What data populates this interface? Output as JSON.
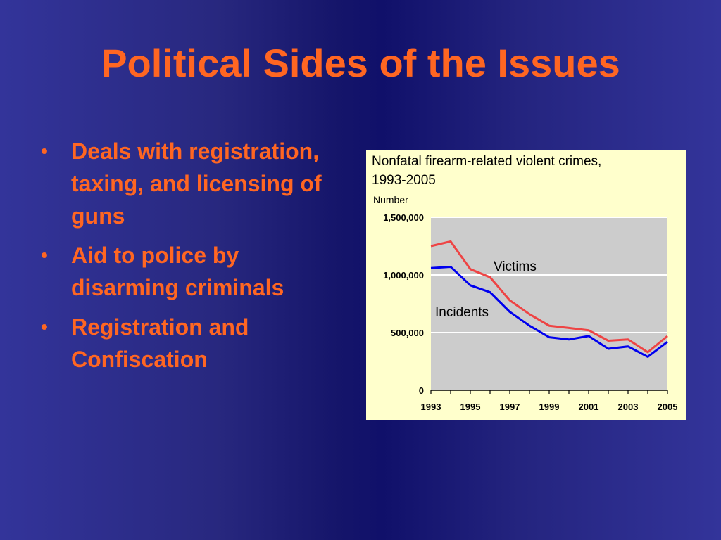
{
  "slide": {
    "title": "Political Sides of the Issues",
    "bullet_glyph": "•",
    "bullets": [
      "Deals with registration, taxing, and licensing of guns",
      "Aid to police by disarming criminals",
      "Registration and Confiscation"
    ]
  },
  "chart_data": {
    "type": "line",
    "title": "Nonfatal firearm-related violent crimes, 1993-2005",
    "title_lines": [
      "Nonfatal firearm-related violent crimes,",
      "1993-2005"
    ],
    "ylabel": "Number",
    "xlabel": "",
    "x": [
      1993,
      1994,
      1995,
      1996,
      1997,
      1998,
      1999,
      2000,
      2001,
      2002,
      2003,
      2004,
      2005
    ],
    "xticks": [
      "1993",
      "1995",
      "1997",
      "1999",
      "2001",
      "2003",
      "2005"
    ],
    "xlim": [
      1993,
      2005
    ],
    "ylim": [
      0,
      1500000
    ],
    "yticks": [
      {
        "value": 0,
        "label": "0"
      },
      {
        "value": 500000,
        "label": "500,000"
      },
      {
        "value": 1000000,
        "label": "1,000,000"
      },
      {
        "value": 1500000,
        "label": "1,500,000"
      }
    ],
    "grid": true,
    "legend": "none",
    "series": [
      {
        "name": "Victims",
        "color": "#ee4444",
        "values": [
          1250000,
          1290000,
          1050000,
          980000,
          780000,
          660000,
          560000,
          540000,
          520000,
          430000,
          440000,
          330000,
          470000
        ]
      },
      {
        "name": "Incidents",
        "color": "#0000ee",
        "values": [
          1060000,
          1070000,
          910000,
          850000,
          680000,
          560000,
          460000,
          440000,
          470000,
          360000,
          380000,
          290000,
          420000
        ]
      }
    ],
    "colors": {
      "plot_background": "#cccccc",
      "panel_background": "#ffffcc",
      "gridline": "#ffffff"
    }
  }
}
